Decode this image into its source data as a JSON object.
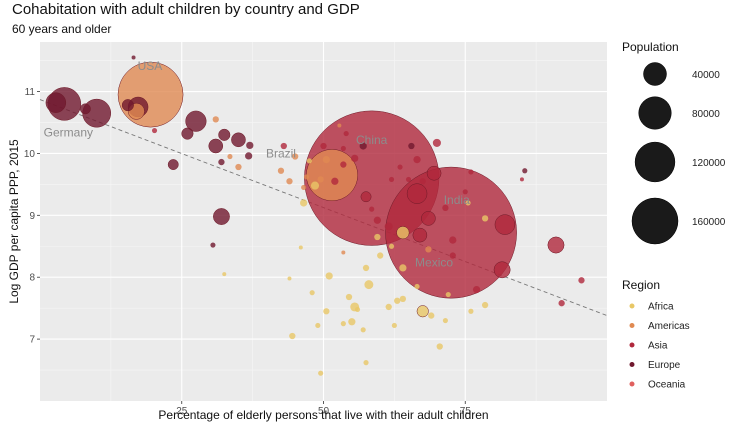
{
  "chart_data": {
    "type": "scatter",
    "title": "Cohabitation with adult children by country and GDP",
    "subtitle": "60 years and older",
    "xlabel": "Percentage of elderly persons that live with their adult children",
    "ylabel": "Log GDP per capita PPP, 2015",
    "xlim": [
      0,
      100
    ],
    "ylim": [
      6.0,
      11.8
    ],
    "x_ticks": [
      25,
      50,
      75
    ],
    "y_ticks": [
      7,
      8,
      9,
      10,
      11
    ],
    "grid": true,
    "trend_line": {
      "style": "dashed",
      "x": [
        0,
        100
      ],
      "y": [
        10.87,
        7.38
      ]
    },
    "size_legend": {
      "title": "Population",
      "values": [
        40000,
        80000,
        120000,
        160000
      ],
      "labels": [
        "40000",
        "80000",
        "120000",
        "160000"
      ]
    },
    "region_legend": {
      "title": "Region",
      "entries": [
        {
          "name": "Africa",
          "color": "#e8c766"
        },
        {
          "name": "Americas",
          "color": "#e08a52"
        },
        {
          "name": "Asia",
          "color": "#b0283c"
        },
        {
          "name": "Europe",
          "color": "#70182e"
        },
        {
          "name": "Oceania",
          "color": "#e0605e"
        }
      ]
    },
    "annotations": [
      {
        "text": "USA",
        "x": 19.4,
        "y": 11.35
      },
      {
        "text": "Germany",
        "x": 5.0,
        "y": 10.27
      },
      {
        "text": "Brazil",
        "x": 42.5,
        "y": 9.93
      },
      {
        "text": "China",
        "x": 58.5,
        "y": 10.15
      },
      {
        "text": "India",
        "x": 73.5,
        "y": 9.18
      },
      {
        "text": "Mexico",
        "x": 69.5,
        "y": 8.17
      }
    ],
    "points": [
      {
        "x": 19.5,
        "y": 10.95,
        "pop": 320000,
        "region": "Americas"
      },
      {
        "x": 4.3,
        "y": 10.8,
        "pop": 82000,
        "region": "Europe"
      },
      {
        "x": 10.0,
        "y": 10.65,
        "pop": 60000,
        "region": "Europe"
      },
      {
        "x": 2.8,
        "y": 10.82,
        "pop": 30000,
        "region": "Europe"
      },
      {
        "x": 17.3,
        "y": 10.75,
        "pop": 30000,
        "region": "Europe"
      },
      {
        "x": 8.0,
        "y": 10.72,
        "pop": 8000,
        "region": "Europe"
      },
      {
        "x": 15.5,
        "y": 10.78,
        "pop": 10000,
        "region": "Europe"
      },
      {
        "x": 16.5,
        "y": 11.55,
        "pop": 1000,
        "region": "Europe"
      },
      {
        "x": 17.0,
        "y": 10.68,
        "pop": 20000,
        "region": "Americas"
      },
      {
        "x": 20.2,
        "y": 10.37,
        "pop": 2000,
        "region": "Asia"
      },
      {
        "x": 27.5,
        "y": 10.52,
        "pop": 32000,
        "region": "Europe"
      },
      {
        "x": 26.0,
        "y": 10.32,
        "pop": 10000,
        "region": "Europe"
      },
      {
        "x": 23.5,
        "y": 9.82,
        "pop": 8000,
        "region": "Europe"
      },
      {
        "x": 31.0,
        "y": 10.55,
        "pop": 3000,
        "region": "Americas"
      },
      {
        "x": 32.5,
        "y": 10.3,
        "pop": 10000,
        "region": "Europe"
      },
      {
        "x": 31.0,
        "y": 10.12,
        "pop": 15000,
        "region": "Europe"
      },
      {
        "x": 35.0,
        "y": 10.22,
        "pop": 15000,
        "region": "Europe"
      },
      {
        "x": 37.0,
        "y": 10.13,
        "pop": 4000,
        "region": "Europe"
      },
      {
        "x": 36.8,
        "y": 9.96,
        "pop": 4000,
        "region": "Europe"
      },
      {
        "x": 33.5,
        "y": 9.95,
        "pop": 2000,
        "region": "Americas"
      },
      {
        "x": 35.0,
        "y": 9.78,
        "pop": 3000,
        "region": "Americas"
      },
      {
        "x": 32.0,
        "y": 9.86,
        "pop": 3000,
        "region": "Europe"
      },
      {
        "x": 32.0,
        "y": 8.98,
        "pop": 20000,
        "region": "Europe"
      },
      {
        "x": 30.5,
        "y": 8.52,
        "pop": 2000,
        "region": "Europe"
      },
      {
        "x": 32.5,
        "y": 8.05,
        "pop": 1000,
        "region": "Africa"
      },
      {
        "x": 50.0,
        "y": 10.12,
        "pop": 3000,
        "region": "Asia"
      },
      {
        "x": 53.5,
        "y": 10.08,
        "pop": 2000,
        "region": "Asia"
      },
      {
        "x": 52.8,
        "y": 10.45,
        "pop": 1000,
        "region": "Americas"
      },
      {
        "x": 54.0,
        "y": 10.32,
        "pop": 2000,
        "region": "Asia"
      },
      {
        "x": 57.0,
        "y": 10.12,
        "pop": 4000,
        "region": "Europe"
      },
      {
        "x": 55.5,
        "y": 9.92,
        "pop": 4000,
        "region": "Asia"
      },
      {
        "x": 49.5,
        "y": 9.58,
        "pop": 3000,
        "region": "Americas"
      },
      {
        "x": 50.5,
        "y": 9.9,
        "pop": 4000,
        "region": "Americas"
      },
      {
        "x": 52.0,
        "y": 9.55,
        "pop": 4000,
        "region": "Asia"
      },
      {
        "x": 53.5,
        "y": 9.82,
        "pop": 3000,
        "region": "Asia"
      },
      {
        "x": 51.5,
        "y": 9.65,
        "pop": 200000,
        "region": "Americas"
      },
      {
        "x": 48.5,
        "y": 9.48,
        "pop": 5000,
        "region": "Africa"
      },
      {
        "x": 46.5,
        "y": 9.2,
        "pop": 4000,
        "region": "Africa"
      },
      {
        "x": 47.5,
        "y": 9.88,
        "pop": 2000,
        "region": "Africa"
      },
      {
        "x": 58.5,
        "y": 9.6,
        "pop": 1370000,
        "region": "Asia"
      },
      {
        "x": 57.5,
        "y": 9.3,
        "pop": 8000,
        "region": "Asia"
      },
      {
        "x": 58.5,
        "y": 9.1,
        "pop": 2000,
        "region": "Asia"
      },
      {
        "x": 59.5,
        "y": 8.92,
        "pop": 4000,
        "region": "Asia"
      },
      {
        "x": 61.5,
        "y": 8.82,
        "pop": 5000,
        "region": "Asia"
      },
      {
        "x": 62.0,
        "y": 9.58,
        "pop": 2000,
        "region": "Asia"
      },
      {
        "x": 63.5,
        "y": 9.78,
        "pop": 2000,
        "region": "Asia"
      },
      {
        "x": 65.0,
        "y": 9.58,
        "pop": 2000,
        "region": "Asia"
      },
      {
        "x": 66.5,
        "y": 9.35,
        "pop": 30000,
        "region": "Asia"
      },
      {
        "x": 67.5,
        "y": 9.55,
        "pop": 3000,
        "region": "Asia"
      },
      {
        "x": 66.5,
        "y": 9.9,
        "pop": 4000,
        "region": "Asia"
      },
      {
        "x": 65.5,
        "y": 10.12,
        "pop": 3000,
        "region": "Europe"
      },
      {
        "x": 69.5,
        "y": 9.68,
        "pop": 15000,
        "region": "Asia"
      },
      {
        "x": 70.0,
        "y": 10.17,
        "pop": 5000,
        "region": "Asia"
      },
      {
        "x": 64.0,
        "y": 8.72,
        "pop": 12000,
        "region": "Africa"
      },
      {
        "x": 67.0,
        "y": 8.68,
        "pop": 15000,
        "region": "Asia"
      },
      {
        "x": 68.5,
        "y": 8.95,
        "pop": 15000,
        "region": "Asia"
      },
      {
        "x": 68.5,
        "y": 8.45,
        "pop": 3000,
        "region": "Americas"
      },
      {
        "x": 71.5,
        "y": 9.12,
        "pop": 3000,
        "region": "Asia"
      },
      {
        "x": 72.5,
        "y": 8.72,
        "pop": 1300000,
        "region": "Asia"
      },
      {
        "x": 72.8,
        "y": 8.6,
        "pop": 4000,
        "region": "Asia"
      },
      {
        "x": 72.8,
        "y": 8.35,
        "pop": 3000,
        "region": "Asia"
      },
      {
        "x": 75.0,
        "y": 9.38,
        "pop": 2000,
        "region": "Asia"
      },
      {
        "x": 76.0,
        "y": 9.7,
        "pop": 2000,
        "region": "Asia"
      },
      {
        "x": 75.5,
        "y": 9.2,
        "pop": 2000,
        "region": "Africa"
      },
      {
        "x": 78.5,
        "y": 8.95,
        "pop": 3000,
        "region": "Africa"
      },
      {
        "x": 82.0,
        "y": 8.85,
        "pop": 30000,
        "region": "Asia"
      },
      {
        "x": 81.5,
        "y": 8.12,
        "pop": 20000,
        "region": "Asia"
      },
      {
        "x": 85.0,
        "y": 9.58,
        "pop": 500,
        "region": "Asia"
      },
      {
        "x": 85.5,
        "y": 9.72,
        "pop": 2000,
        "region": "Europe"
      },
      {
        "x": 77.0,
        "y": 7.8,
        "pop": 4000,
        "region": "Asia"
      },
      {
        "x": 76.0,
        "y": 7.45,
        "pop": 2000,
        "region": "Africa"
      },
      {
        "x": 78.5,
        "y": 7.55,
        "pop": 3000,
        "region": "Africa"
      },
      {
        "x": 91.0,
        "y": 8.52,
        "pop": 20000,
        "region": "Asia"
      },
      {
        "x": 95.5,
        "y": 7.95,
        "pop": 3000,
        "region": "Asia"
      },
      {
        "x": 92.0,
        "y": 7.58,
        "pop": 3000,
        "region": "Asia"
      },
      {
        "x": 72.0,
        "y": 7.72,
        "pop": 2000,
        "region": "Africa"
      },
      {
        "x": 66.5,
        "y": 7.85,
        "pop": 2000,
        "region": "Africa"
      },
      {
        "x": 64.0,
        "y": 7.65,
        "pop": 3000,
        "region": "Africa"
      },
      {
        "x": 67.5,
        "y": 7.45,
        "pop": 10000,
        "region": "Africa"
      },
      {
        "x": 69.0,
        "y": 7.38,
        "pop": 3000,
        "region": "Africa"
      },
      {
        "x": 70.5,
        "y": 6.88,
        "pop": 3000,
        "region": "Africa"
      },
      {
        "x": 71.5,
        "y": 7.3,
        "pop": 2000,
        "region": "Africa"
      },
      {
        "x": 61.5,
        "y": 7.52,
        "pop": 3000,
        "region": "Africa"
      },
      {
        "x": 62.5,
        "y": 7.22,
        "pop": 2000,
        "region": "Africa"
      },
      {
        "x": 63.0,
        "y": 7.62,
        "pop": 3000,
        "region": "Africa"
      },
      {
        "x": 58.0,
        "y": 7.88,
        "pop": 6000,
        "region": "Africa"
      },
      {
        "x": 57.5,
        "y": 8.15,
        "pop": 3000,
        "region": "Africa"
      },
      {
        "x": 56.0,
        "y": 7.48,
        "pop": 2000,
        "region": "Africa"
      },
      {
        "x": 55.5,
        "y": 7.52,
        "pop": 6000,
        "region": "Africa"
      },
      {
        "x": 55.0,
        "y": 7.28,
        "pop": 4000,
        "region": "Africa"
      },
      {
        "x": 54.5,
        "y": 7.68,
        "pop": 3000,
        "region": "Africa"
      },
      {
        "x": 57.0,
        "y": 7.15,
        "pop": 2000,
        "region": "Africa"
      },
      {
        "x": 57.5,
        "y": 6.62,
        "pop": 2000,
        "region": "Africa"
      },
      {
        "x": 53.5,
        "y": 7.25,
        "pop": 2000,
        "region": "Africa"
      },
      {
        "x": 51.0,
        "y": 8.02,
        "pop": 4000,
        "region": "Africa"
      },
      {
        "x": 50.5,
        "y": 7.45,
        "pop": 3000,
        "region": "Africa"
      },
      {
        "x": 48.0,
        "y": 7.75,
        "pop": 2000,
        "region": "Africa"
      },
      {
        "x": 49.0,
        "y": 7.22,
        "pop": 2000,
        "region": "Africa"
      },
      {
        "x": 49.5,
        "y": 6.45,
        "pop": 2000,
        "region": "Africa"
      },
      {
        "x": 44.5,
        "y": 7.05,
        "pop": 3000,
        "region": "Africa"
      },
      {
        "x": 44.0,
        "y": 7.98,
        "pop": 1000,
        "region": "Africa"
      },
      {
        "x": 46.0,
        "y": 8.48,
        "pop": 1000,
        "region": "Africa"
      },
      {
        "x": 53.5,
        "y": 8.4,
        "pop": 1000,
        "region": "Americas"
      },
      {
        "x": 64.0,
        "y": 8.15,
        "pop": 4000,
        "region": "Africa"
      },
      {
        "x": 62.0,
        "y": 8.5,
        "pop": 2000,
        "region": "Africa"
      },
      {
        "x": 59.5,
        "y": 8.65,
        "pop": 3000,
        "region": "Africa"
      },
      {
        "x": 60.0,
        "y": 8.35,
        "pop": 3000,
        "region": "Africa"
      },
      {
        "x": 46.5,
        "y": 9.45,
        "pop": 2000,
        "region": "Americas"
      },
      {
        "x": 44.0,
        "y": 9.55,
        "pop": 3000,
        "region": "Americas"
      },
      {
        "x": 42.5,
        "y": 9.72,
        "pop": 3000,
        "region": "Americas"
      },
      {
        "x": 45.0,
        "y": 9.95,
        "pop": 3000,
        "region": "Americas"
      },
      {
        "x": 47.0,
        "y": 9.62,
        "pop": 2000,
        "region": "Americas"
      },
      {
        "x": 43.0,
        "y": 10.12,
        "pop": 3000,
        "region": "Asia"
      }
    ]
  }
}
